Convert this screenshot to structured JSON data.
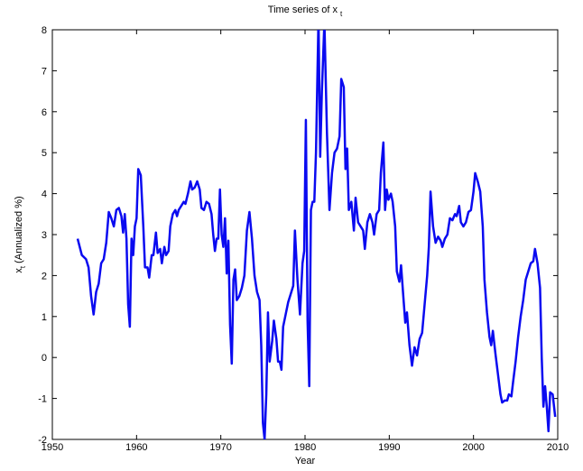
{
  "chart_data": {
    "type": "line",
    "title": {
      "text": "Time series of x",
      "subscript": "t"
    },
    "x_label": "Year",
    "y_label": {
      "text": "x",
      "subscript": "t",
      "suffix": "(Annualized %)"
    },
    "color": "#0a0af0",
    "xlim": [
      1950,
      2010
    ],
    "ylim": [
      -2,
      8
    ],
    "xticks": [
      1950,
      1960,
      1970,
      1980,
      1990,
      2000,
      2010
    ],
    "yticks": [
      -2,
      -1,
      0,
      1,
      2,
      3,
      4,
      5,
      6,
      7,
      8
    ],
    "grid": false,
    "x": [
      1953.0,
      1953.5,
      1954.0,
      1954.3,
      1954.6,
      1954.9,
      1955.2,
      1955.5,
      1955.8,
      1956.1,
      1956.4,
      1956.7,
      1957.0,
      1957.3,
      1957.6,
      1957.9,
      1958.2,
      1958.4,
      1958.6,
      1958.8,
      1959.0,
      1959.2,
      1959.4,
      1959.6,
      1959.8,
      1960.0,
      1960.2,
      1960.5,
      1960.8,
      1961.0,
      1961.3,
      1961.5,
      1961.8,
      1962.0,
      1962.3,
      1962.5,
      1962.8,
      1963.0,
      1963.3,
      1963.5,
      1963.8,
      1964.0,
      1964.3,
      1964.6,
      1964.8,
      1965.0,
      1965.3,
      1965.6,
      1965.8,
      1966.1,
      1966.4,
      1966.6,
      1966.9,
      1967.2,
      1967.5,
      1967.7,
      1968.0,
      1968.3,
      1968.6,
      1968.9,
      1969.1,
      1969.3,
      1969.5,
      1969.7,
      1969.9,
      1970.1,
      1970.3,
      1970.5,
      1970.7,
      1970.9,
      1971.1,
      1971.3,
      1971.5,
      1971.7,
      1971.9,
      1972.2,
      1972.5,
      1972.8,
      1973.1,
      1973.4,
      1973.7,
      1974.0,
      1974.3,
      1974.6,
      1974.8,
      1975.0,
      1975.2,
      1975.4,
      1975.6,
      1975.8,
      1976.1,
      1976.3,
      1976.6,
      1976.8,
      1977.0,
      1977.2,
      1977.4,
      1977.7,
      1978.0,
      1978.3,
      1978.6,
      1978.8,
      1979.1,
      1979.4,
      1979.7,
      1979.9,
      1980.1,
      1980.3,
      1980.5,
      1980.7,
      1980.9,
      1981.1,
      1981.3,
      1981.6,
      1981.8,
      1982.0,
      1982.3,
      1982.6,
      1982.9,
      1983.2,
      1983.5,
      1983.8,
      1984.1,
      1984.3,
      1984.6,
      1984.8,
      1985.0,
      1985.2,
      1985.5,
      1985.8,
      1986.0,
      1986.3,
      1986.6,
      1986.9,
      1987.1,
      1987.4,
      1987.7,
      1988.0,
      1988.2,
      1988.5,
      1988.8,
      1989.0,
      1989.3,
      1989.5,
      1989.7,
      1989.9,
      1990.2,
      1990.4,
      1990.7,
      1990.9,
      1991.2,
      1991.4,
      1991.7,
      1991.9,
      1992.1,
      1992.4,
      1992.7,
      1993.0,
      1993.3,
      1993.6,
      1993.9,
      1994.2,
      1994.5,
      1994.7,
      1994.9,
      1995.2,
      1995.5,
      1995.8,
      1996.1,
      1996.3,
      1996.6,
      1996.9,
      1997.2,
      1997.5,
      1997.8,
      1998.0,
      1998.3,
      1998.5,
      1998.8,
      1999.1,
      1999.4,
      1999.7,
      2000.0,
      2000.2,
      2000.5,
      2000.8,
      2001.1,
      2001.3,
      2001.6,
      2001.9,
      2002.1,
      2002.3,
      2002.6,
      2002.9,
      2003.2,
      2003.4,
      2003.7,
      2004.0,
      2004.2,
      2004.5,
      2004.7,
      2005.0,
      2005.3,
      2005.6,
      2005.9,
      2006.2,
      2006.5,
      2006.8,
      2007.1,
      2007.3,
      2007.6,
      2007.9,
      2008.1,
      2008.3,
      2008.5,
      2008.7,
      2008.9,
      2009.1,
      2009.4,
      2009.7
    ],
    "values": [
      2.9,
      2.5,
      2.4,
      2.2,
      1.5,
      1.05,
      1.6,
      1.8,
      2.3,
      2.4,
      2.8,
      3.55,
      3.4,
      3.2,
      3.6,
      3.65,
      3.45,
      3.05,
      3.5,
      2.9,
      1.3,
      0.75,
      2.9,
      2.5,
      3.2,
      3.4,
      4.6,
      4.45,
      3.2,
      2.2,
      2.2,
      1.95,
      2.5,
      2.5,
      3.05,
      2.55,
      2.65,
      2.3,
      2.7,
      2.5,
      2.6,
      3.2,
      3.5,
      3.6,
      3.45,
      3.6,
      3.7,
      3.8,
      3.75,
      4.0,
      4.3,
      4.1,
      4.15,
      4.3,
      4.1,
      3.65,
      3.6,
      3.8,
      3.75,
      3.5,
      3.0,
      2.6,
      2.9,
      2.9,
      4.1,
      3.0,
      2.7,
      3.4,
      2.05,
      2.85,
      0.8,
      -0.15,
      1.9,
      2.15,
      1.4,
      1.5,
      1.7,
      2.0,
      3.1,
      3.55,
      2.9,
      2.0,
      1.6,
      1.4,
      0.3,
      -1.6,
      -2.0,
      -0.9,
      1.1,
      -0.1,
      0.4,
      0.9,
      0.45,
      -0.1,
      -0.1,
      -0.3,
      0.75,
      1.05,
      1.35,
      1.55,
      1.75,
      3.1,
      1.9,
      1.05,
      2.3,
      2.6,
      5.8,
      0.9,
      -0.7,
      3.6,
      3.8,
      3.8,
      5.0,
      8.3,
      4.9,
      6.5,
      8.2,
      5.5,
      3.6,
      4.5,
      5.0,
      5.1,
      5.4,
      6.8,
      6.6,
      4.6,
      5.1,
      3.6,
      3.8,
      3.1,
      3.9,
      3.3,
      3.2,
      3.1,
      2.65,
      3.3,
      3.5,
      3.3,
      3.0,
      3.5,
      3.6,
      4.5,
      5.25,
      3.6,
      4.1,
      3.85,
      4.0,
      3.8,
      3.2,
      2.1,
      1.85,
      2.25,
      1.4,
      0.85,
      1.1,
      0.3,
      -0.2,
      0.25,
      0.05,
      0.45,
      0.6,
      1.3,
      2.0,
      2.7,
      4.05,
      3.2,
      2.8,
      2.95,
      2.85,
      2.7,
      2.9,
      3.0,
      3.4,
      3.35,
      3.5,
      3.45,
      3.7,
      3.3,
      3.2,
      3.3,
      3.55,
      3.6,
      4.05,
      4.5,
      4.3,
      4.05,
      3.2,
      1.9,
      1.1,
      0.5,
      0.3,
      0.65,
      0.1,
      -0.4,
      -0.9,
      -1.1,
      -1.05,
      -1.05,
      -0.9,
      -0.95,
      -0.6,
      -0.1,
      0.5,
      1.0,
      1.4,
      1.9,
      2.1,
      2.3,
      2.35,
      2.65,
      2.3,
      1.7,
      0.0,
      -1.2,
      -0.7,
      -1.2,
      -1.8,
      -0.85,
      -0.9,
      -1.45
    ]
  }
}
